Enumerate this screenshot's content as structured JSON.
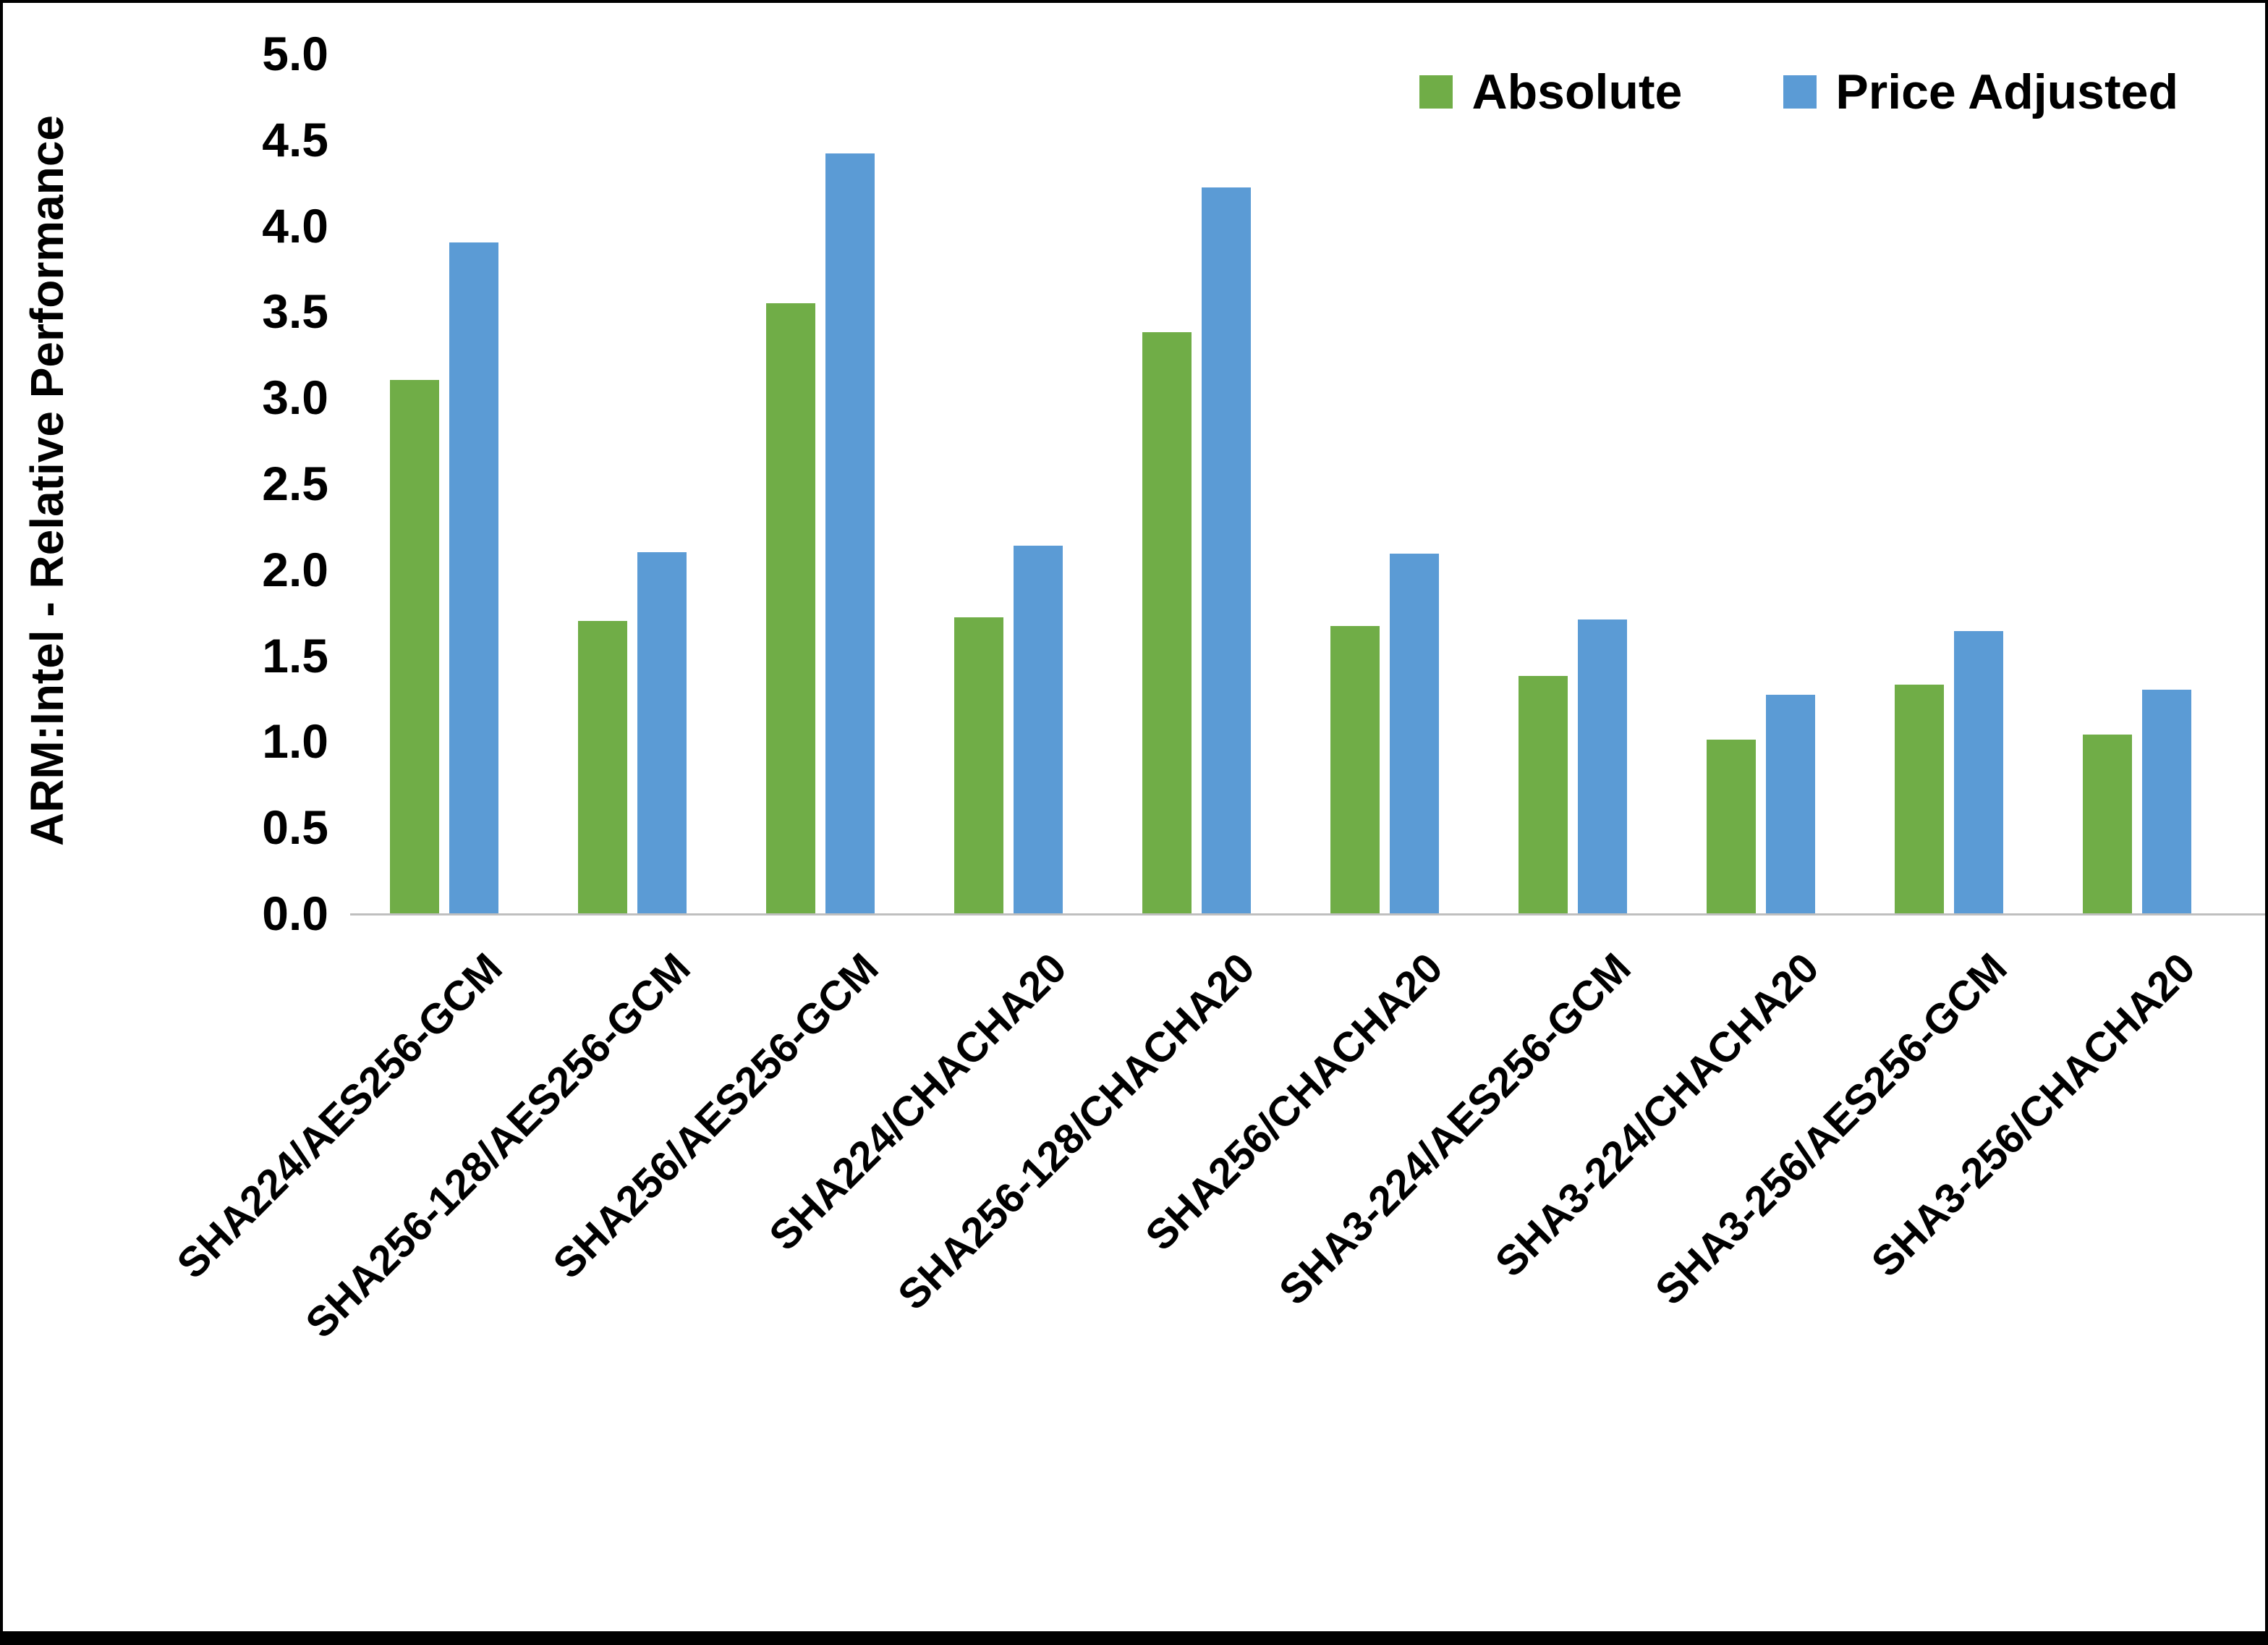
{
  "chart_data": {
    "type": "bar",
    "title": "",
    "xlabel": "",
    "ylabel": "ARM:Intel - Relative Performance",
    "ylim": [
      0,
      5
    ],
    "ytick_step": 0.5,
    "grid": false,
    "legend_position": "top-right",
    "categories": [
      "SHA224/AES256-GCM",
      "SHA256-128/AES256-GCM",
      "SHA256/AES256-GCM",
      "SHA224/CHACHA20",
      "SHA256-128/CHACHA20",
      "SHA256/CHACHA20",
      "SHA3-224/AES256-GCM",
      "SHA3-224/CHACHA20",
      "SHA3-256/AES256-GCM",
      "SHA3-256/CHACHA20"
    ],
    "series": [
      {
        "name": "Absolute",
        "color": "#70AD47",
        "values": [
          3.1,
          1.7,
          3.55,
          1.72,
          3.38,
          1.67,
          1.38,
          1.01,
          1.33,
          1.04
        ]
      },
      {
        "name": "Price Adjusted",
        "color": "#5B9BD5",
        "values": [
          3.9,
          2.1,
          4.42,
          2.14,
          4.22,
          2.09,
          1.71,
          1.27,
          1.64,
          1.3
        ]
      }
    ]
  }
}
